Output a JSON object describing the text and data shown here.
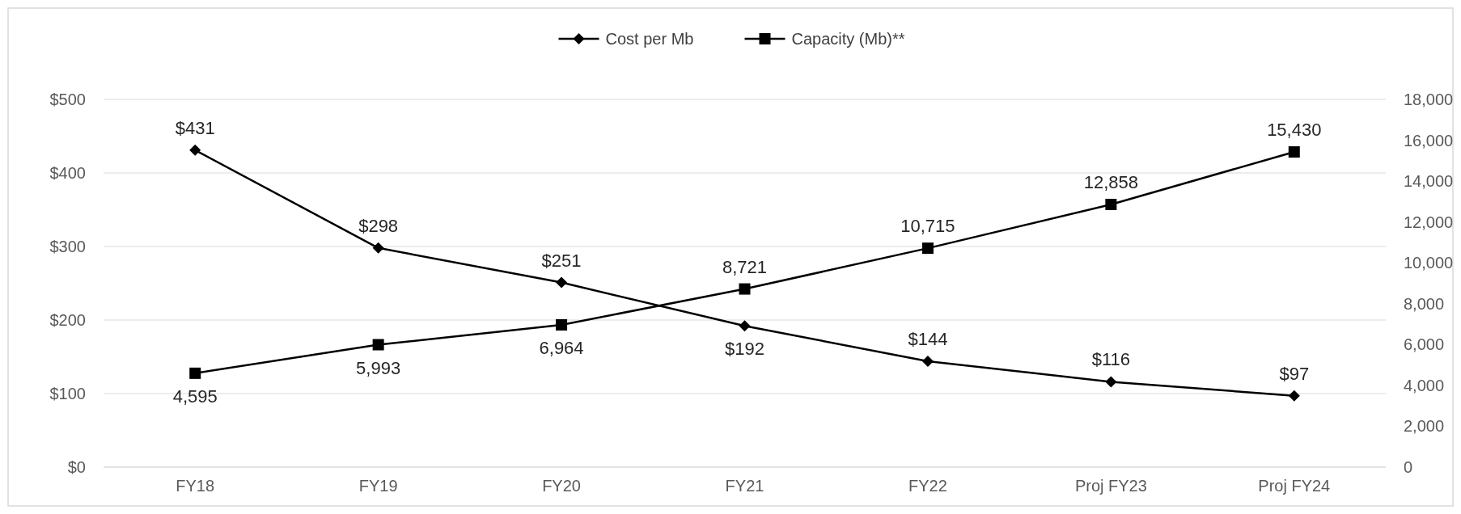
{
  "chart_data": {
    "type": "line",
    "categories": [
      "FY18",
      "FY19",
      "FY20",
      "FY21",
      "FY22",
      "Proj FY23",
      "Proj FY24"
    ],
    "series": [
      {
        "name": "Cost per Mb",
        "color": "#000000",
        "marker": "diamond",
        "values": [
          431,
          298,
          251,
          192,
          144,
          116,
          97
        ],
        "value_labels": [
          "$431",
          "$298",
          "$251",
          "$192",
          "$144",
          "$116",
          "$97"
        ]
      },
      {
        "name": "Capacity (Mb)**",
        "color": "#000000",
        "marker": "square",
        "axis": "y2",
        "values": [
          4595,
          5993,
          6964,
          8721,
          10715,
          12858,
          15430
        ],
        "value_labels": [
          "4,595",
          "5,993",
          "6,964",
          "8,721",
          "10,715",
          "12,858",
          "15,430"
        ]
      }
    ],
    "ylim": [
      0,
      500
    ],
    "yticks": [
      {
        "value": 0,
        "label": "$0"
      },
      {
        "value": 100,
        "label": "$100"
      },
      {
        "value": 200,
        "label": "$200"
      },
      {
        "value": 300,
        "label": "$300"
      },
      {
        "value": 400,
        "label": "$400"
      },
      {
        "value": 500,
        "label": "$500"
      }
    ],
    "y2lim": [
      0,
      18000
    ],
    "y2ticks": [
      0,
      {
        "value": 2000,
        "label": "2,000"
      },
      {
        "value": 4000,
        "label": "4,000"
      },
      {
        "value": 6000,
        "label": "6,000"
      },
      {
        "value": 8000,
        "label": "8,000"
      },
      {
        "value": 10000,
        "label": "10,000"
      },
      {
        "value": 12000,
        "label": "12,000"
      },
      {
        "value": 14000,
        "label": "14,000"
      },
      {
        "value": 16000,
        "label": "16,000"
      },
      {
        "value": 18000,
        "label": "18,000"
      }
    ],
    "grid": "y",
    "legend": "top",
    "line_style": "solid"
  }
}
